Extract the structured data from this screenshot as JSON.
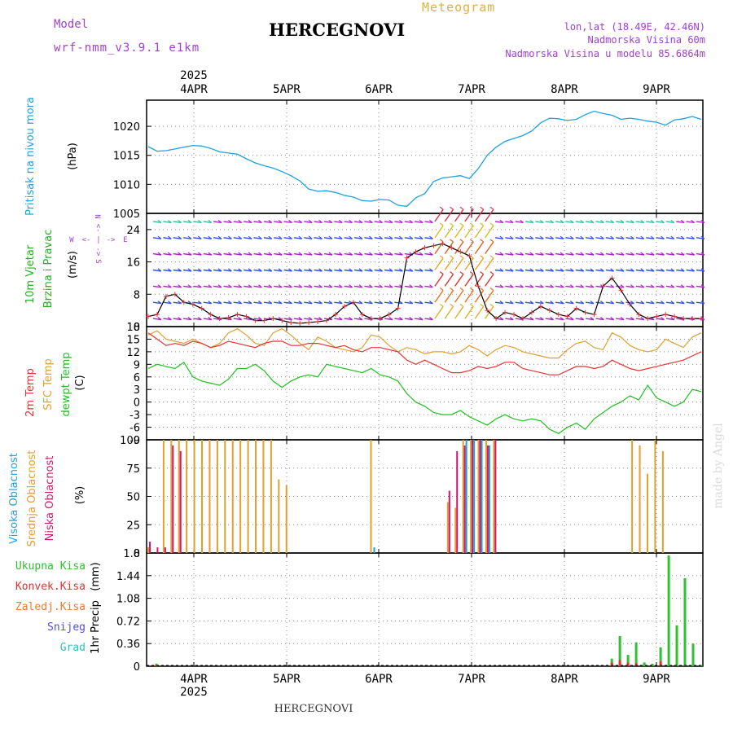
{
  "header": {
    "model_label": "Model",
    "model_name": "wrf-nmm_v3.9.1 e1km",
    "station_title": "HERCEGNOVI",
    "product": "Meteogram",
    "coords": "lon,lat (18.49E, 42.46N)",
    "elevation": "Nadmorska Visina 60m",
    "model_elevation": "Nadmorska Visina u modelu 85.6864m",
    "bottom_title": "HERCEGNOVI",
    "watermark": "made by Angel"
  },
  "colors": {
    "pressure": "#1ea0e6",
    "temp2m": "#e83232",
    "sfc_temp": "#e0a030",
    "dewpt": "#20c020",
    "high_cloud": "#20a0e0",
    "mid_cloud": "#e0a030",
    "low_cloud": "#d01870",
    "total_precip": "#30c030",
    "conv_precip": "#e83232",
    "frozen_precip": "#f07830",
    "snow": "#5050e0",
    "hail": "#30c0c0",
    "title_purple": "#a040d0",
    "gold": "#e0b040"
  },
  "chart_data": {
    "type": "line",
    "time_axis": {
      "year": "2025",
      "labels": [
        "4APR",
        "5APR",
        "6APR",
        "7APR",
        "8APR",
        "9APR"
      ],
      "start": "2025-04-03 12:00",
      "end": "2025-04-09 12:00"
    },
    "panels": [
      {
        "id": "pressure",
        "ylabel": "Pritisak na nivou mora",
        "unit": "(hPa)",
        "ylim": [
          1005,
          1024.5
        ],
        "ticks": [
          1005,
          1010,
          1015,
          1020
        ],
        "grid": true,
        "series": [
          {
            "values": [
              1016.5,
              1015.7,
              1015.8,
              1016.1,
              1016.4,
              1016.7,
              1016.6,
              1016.2,
              1015.6,
              1015.4,
              1015.2,
              1014.4,
              1013.7,
              1013.2,
              1012.8,
              1012.2,
              1011.5,
              1010.6,
              1009.2,
              1008.8,
              1008.9,
              1008.6,
              1008.1,
              1007.8,
              1007.2,
              1007.1,
              1007.4,
              1007.3,
              1006.4,
              1006.2,
              1007.7,
              1008.4,
              1010.5,
              1011.1,
              1011.3,
              1011.5,
              1011.0,
              1012.7,
              1015.0,
              1016.4,
              1017.4,
              1017.9,
              1018.4,
              1019.2,
              1020.6,
              1021.4,
              1021.3,
              1021.0,
              1021.2,
              1022.0,
              1022.6,
              1022.2,
              1021.9,
              1021.2,
              1021.4,
              1021.2,
              1020.9,
              1020.7,
              1020.2,
              1021.1,
              1021.3,
              1021.7,
              1021.2
            ]
          }
        ]
      },
      {
        "id": "wind",
        "ylabel": "10m Vjetar",
        "ylabel2": "Brzina i Pravac",
        "unit": "(m/s)",
        "compass": [
          "N",
          "E",
          "S",
          "W",
          "<-",
          "->",
          "|"
        ],
        "ylim": [
          0,
          28
        ],
        "ticks": [
          0,
          8,
          16,
          24
        ],
        "grid": true,
        "levels": [
          2,
          6,
          10,
          14,
          18,
          22,
          26
        ],
        "series": [
          {
            "name": "10m wind speed",
            "values": [
              2.5,
              3.0,
              7.5,
              8.0,
              6.0,
              5.5,
              4.5,
              3.0,
              2.0,
              2.2,
              3.0,
              2.5,
              1.5,
              1.5,
              2.0,
              1.5,
              1.0,
              0.8,
              1.0,
              1.2,
              1.5,
              3.0,
              5.0,
              6.0,
              3.0,
              2.0,
              2.0,
              3.0,
              4.5,
              17.0,
              18.5,
              19.5,
              20.0,
              20.5,
              19.5,
              18.5,
              17.5,
              10.0,
              4.0,
              2.0,
              3.5,
              3.0,
              2.0,
              3.5,
              5.0,
              4.0,
              3.0,
              2.5,
              4.5,
              3.5,
              3.0,
              10.0,
              12.0,
              9.0,
              5.5,
              3.0,
              2.0,
              2.5,
              3.0,
              2.5,
              2.0,
              2.0,
              2.0
            ]
          }
        ]
      },
      {
        "id": "temperature",
        "ylabel": "2m Temp",
        "ylabel2": "SFC Temp",
        "ylabel3": "dewpt Temp",
        "unit": "(C)",
        "ylim": [
          -9,
          18
        ],
        "ticks": [
          -9,
          -6,
          -3,
          0,
          3,
          6,
          9,
          12,
          15,
          18
        ],
        "grid": true,
        "series": [
          {
            "name": "2m Temp",
            "values": [
              16.5,
              15.0,
              13.5,
              14.0,
              13.5,
              14.5,
              14.0,
              13.0,
              13.5,
              14.5,
              14.0,
              13.5,
              13.0,
              14.0,
              14.5,
              14.5,
              13.5,
              13.5,
              14.0,
              14.0,
              13.5,
              13.0,
              13.5,
              12.5,
              12.0,
              13.0,
              13.0,
              12.5,
              12.0,
              10.0,
              9.0,
              10.0,
              9.0,
              8.0,
              7.0,
              7.0,
              7.5,
              8.5,
              8.0,
              8.5,
              9.5,
              9.5,
              8.0,
              7.5,
              7.0,
              6.5,
              6.5,
              7.5,
              8.5,
              8.5,
              8.0,
              8.5,
              10.0,
              9.0,
              8.0,
              7.5,
              8.0,
              8.5,
              9.0,
              9.5,
              10.0,
              11.0,
              12.0
            ]
          },
          {
            "name": "SFC Temp",
            "values": [
              16.0,
              17.0,
              15.0,
              14.5,
              14.0,
              15.0,
              14.0,
              13.0,
              14.0,
              16.5,
              17.5,
              16.0,
              14.0,
              13.5,
              16.5,
              17.5,
              16.0,
              14.0,
              12.5,
              15.5,
              14.5,
              13.0,
              12.5,
              12.0,
              13.0,
              16.0,
              15.5,
              13.5,
              12.0,
              13.0,
              12.5,
              11.5,
              12.0,
              12.0,
              11.5,
              12.0,
              13.5,
              12.5,
              11.0,
              12.5,
              13.5,
              13.0,
              12.0,
              11.5,
              11.0,
              10.5,
              10.5,
              12.5,
              14.0,
              14.5,
              13.0,
              12.5,
              16.5,
              15.5,
              13.5,
              12.5,
              12.0,
              12.5,
              15.0,
              14.0,
              13.0,
              15.5,
              16.5
            ]
          },
          {
            "name": "dewpt Temp",
            "values": [
              8.0,
              9.0,
              8.5,
              8.0,
              9.5,
              6.0,
              5.0,
              4.5,
              4.0,
              5.5,
              8.0,
              8.0,
              9.0,
              7.5,
              5.0,
              3.5,
              5.0,
              6.0,
              6.5,
              6.0,
              9.0,
              8.5,
              8.0,
              7.5,
              7.0,
              8.0,
              6.5,
              6.0,
              5.0,
              2.0,
              0.0,
              -1.0,
              -2.5,
              -3.0,
              -3.0,
              -2.0,
              -3.5,
              -4.5,
              -5.5,
              -4.0,
              -3.0,
              -4.0,
              -4.5,
              -4.0,
              -4.5,
              -6.5,
              -7.5,
              -6.0,
              -5.0,
              -6.5,
              -4.0,
              -2.5,
              -1.0,
              0.0,
              1.5,
              0.5,
              4.0,
              1.0,
              0.0,
              -1.0,
              0.0,
              3.0,
              2.5
            ]
          }
        ]
      },
      {
        "id": "clouds",
        "ylabel": "Visoka Oblacnost",
        "ylabel2": "Srednja Oblacnost",
        "ylabel3": "Niska Oblacnost",
        "unit": "(%)",
        "ylim": [
          0,
          100
        ],
        "ticks": [
          0,
          25,
          50,
          75,
          100
        ],
        "grid": true,
        "series": [
          {
            "name": "Srednja Oblacnost",
            "values": [
              5,
              0,
              100,
              100,
              100,
              100,
              100,
              100,
              100,
              100,
              100,
              100,
              100,
              100,
              100,
              100,
              100,
              65,
              60,
              0,
              0,
              0,
              0,
              0,
              0,
              0,
              0,
              0,
              0,
              100,
              0,
              0,
              0,
              0,
              0,
              0,
              0,
              0,
              0,
              45,
              40,
              100,
              100,
              100,
              100,
              100,
              0,
              0,
              0,
              0,
              0,
              0,
              0,
              0,
              0,
              0,
              0,
              0,
              0,
              0,
              0,
              0,
              0,
              100,
              95,
              70,
              100,
              90,
              0,
              0,
              0,
              0,
              0
            ]
          },
          {
            "name": "Niska Oblacnost",
            "values": [
              10,
              5,
              5,
              95,
              90,
              0,
              0,
              0,
              0,
              0,
              0,
              0,
              0,
              0,
              0,
              0,
              0,
              0,
              0,
              0,
              0,
              0,
              0,
              0,
              0,
              0,
              0,
              0,
              0,
              0,
              0,
              0,
              0,
              0,
              0,
              0,
              0,
              0,
              0,
              55,
              90,
              95,
              100,
              100,
              95,
              100,
              0,
              0,
              0,
              0,
              0,
              0,
              0,
              0,
              0,
              0,
              0,
              0,
              0,
              0,
              0,
              0,
              0,
              0,
              0,
              0,
              0,
              0,
              0,
              0,
              0,
              0,
              0
            ]
          },
          {
            "name": "Visoka Oblacnost",
            "values": [
              0,
              0,
              0,
              0,
              0,
              0,
              0,
              0,
              0,
              0,
              0,
              0,
              0,
              0,
              0,
              0,
              0,
              0,
              0,
              0,
              0,
              0,
              0,
              0,
              0,
              0,
              0,
              0,
              0,
              5,
              0,
              0,
              0,
              0,
              0,
              0,
              0,
              0,
              0,
              0,
              0,
              100,
              100,
              100,
              95,
              0,
              0,
              0,
              0,
              0,
              0,
              0,
              0,
              0,
              0,
              0,
              0,
              0,
              0,
              0,
              0,
              0,
              0,
              0,
              0,
              0,
              0,
              0,
              0,
              0,
              0,
              0,
              0
            ]
          }
        ]
      },
      {
        "id": "precip",
        "ylabel": "1hr Precip",
        "unit": "(mm)",
        "legend": [
          "Ukupna Kisa",
          "Konvek.Kisa",
          "Zaledj.Kisa",
          "Snijeg",
          "Grad"
        ],
        "ylim": [
          0,
          1.8
        ],
        "ticks": [
          0,
          0.36,
          0.72,
          1.08,
          1.44,
          1.8
        ],
        "grid": true,
        "series": [
          {
            "name": "Ukupna Kisa",
            "values": [
              0,
              0.04,
              0,
              0,
              0,
              0,
              0,
              0,
              0,
              0,
              0,
              0,
              0,
              0,
              0,
              0,
              0,
              0,
              0,
              0,
              0,
              0,
              0,
              0,
              0,
              0,
              0,
              0,
              0,
              0,
              0,
              0,
              0,
              0,
              0,
              0,
              0,
              0,
              0,
              0,
              0,
              0,
              0,
              0,
              0,
              0,
              0,
              0,
              0,
              0,
              0,
              0,
              0,
              0,
              0,
              0,
              0,
              0.12,
              0.48,
              0.18,
              0.38,
              0.06,
              0.04,
              0.3,
              1.76,
              0.65,
              1.4,
              0.36,
              0.02
            ]
          },
          {
            "name": "Konvek.Kisa",
            "values": [
              0,
              0.02,
              0,
              0,
              0,
              0,
              0,
              0,
              0,
              0,
              0,
              0,
              0,
              0,
              0,
              0,
              0,
              0,
              0,
              0,
              0,
              0,
              0,
              0,
              0,
              0,
              0,
              0,
              0,
              0,
              0,
              0,
              0,
              0,
              0,
              0,
              0,
              0,
              0,
              0,
              0,
              0,
              0,
              0,
              0,
              0,
              0,
              0,
              0,
              0,
              0,
              0,
              0,
              0,
              0,
              0,
              0,
              0.06,
              0.1,
              0.06,
              0.05,
              0,
              0,
              0.08,
              0,
              0,
              0,
              0,
              0
            ]
          }
        ]
      }
    ]
  }
}
